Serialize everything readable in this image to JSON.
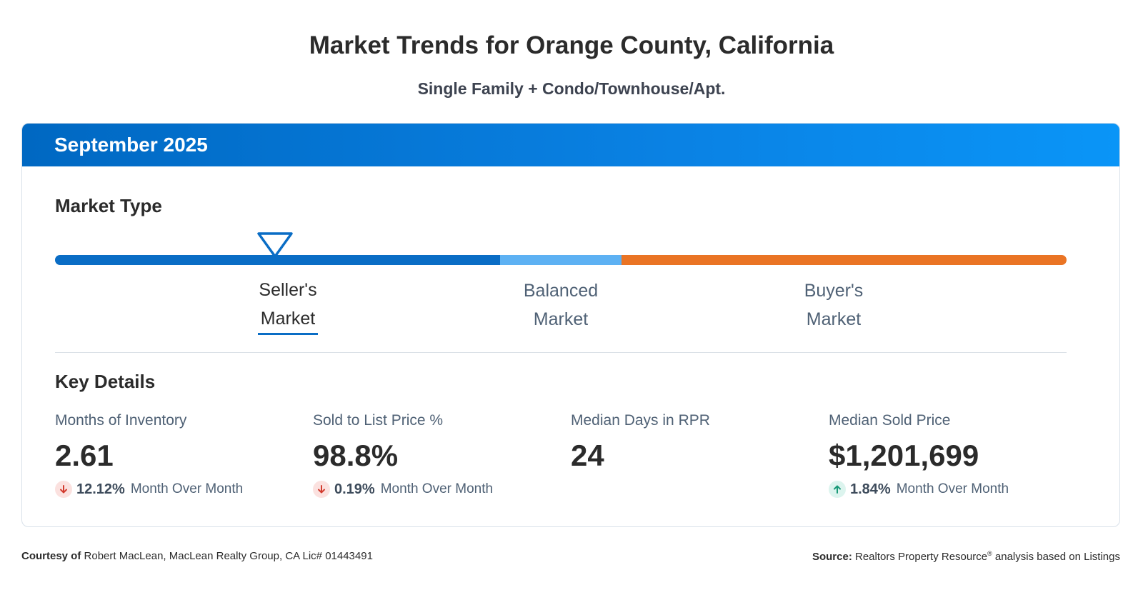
{
  "header": {
    "title": "Market Trends for Orange County, California",
    "subtitle": "Single Family + Condo/Townhouse/Apt."
  },
  "card": {
    "period": "September 2025",
    "market_type": {
      "heading": "Market Type",
      "selected": "seller",
      "labels": {
        "seller_line1": "Seller's",
        "seller_line2": "Market",
        "balanced_line1": "Balanced",
        "balanced_line2": "Market",
        "buyer_line1": "Buyer's",
        "buyer_line2": "Market"
      },
      "colors": {
        "seller": "#0a6dc5",
        "balanced": "#5db1f3",
        "buyer": "#ea7424"
      }
    },
    "key_details": {
      "heading": "Key Details",
      "stats": [
        {
          "label": "Months of Inventory",
          "value": "2.61",
          "change": "12.12%",
          "direction": "down",
          "change_label": "Month Over Month",
          "arrow_icon": "arrow-down-icon"
        },
        {
          "label": "Sold to List Price %",
          "value": "98.8%",
          "change": "0.19%",
          "direction": "down",
          "change_label": "Month Over Month",
          "arrow_icon": "arrow-down-icon"
        },
        {
          "label": "Median Days in RPR",
          "value": "24"
        },
        {
          "label": "Median Sold Price",
          "value": "$1,201,699",
          "change": "1.84%",
          "direction": "up",
          "change_label": "Month Over Month",
          "arrow_icon": "arrow-up-icon"
        }
      ]
    }
  },
  "footer": {
    "courtesy_label": "Courtesy of",
    "courtesy_text": "Robert MacLean, MacLean Realty Group, CA Lic# 01443491",
    "source_label": "Source:",
    "source_name": "Realtors Property Resource",
    "source_mark": "®",
    "source_text": " analysis based on Listings"
  }
}
